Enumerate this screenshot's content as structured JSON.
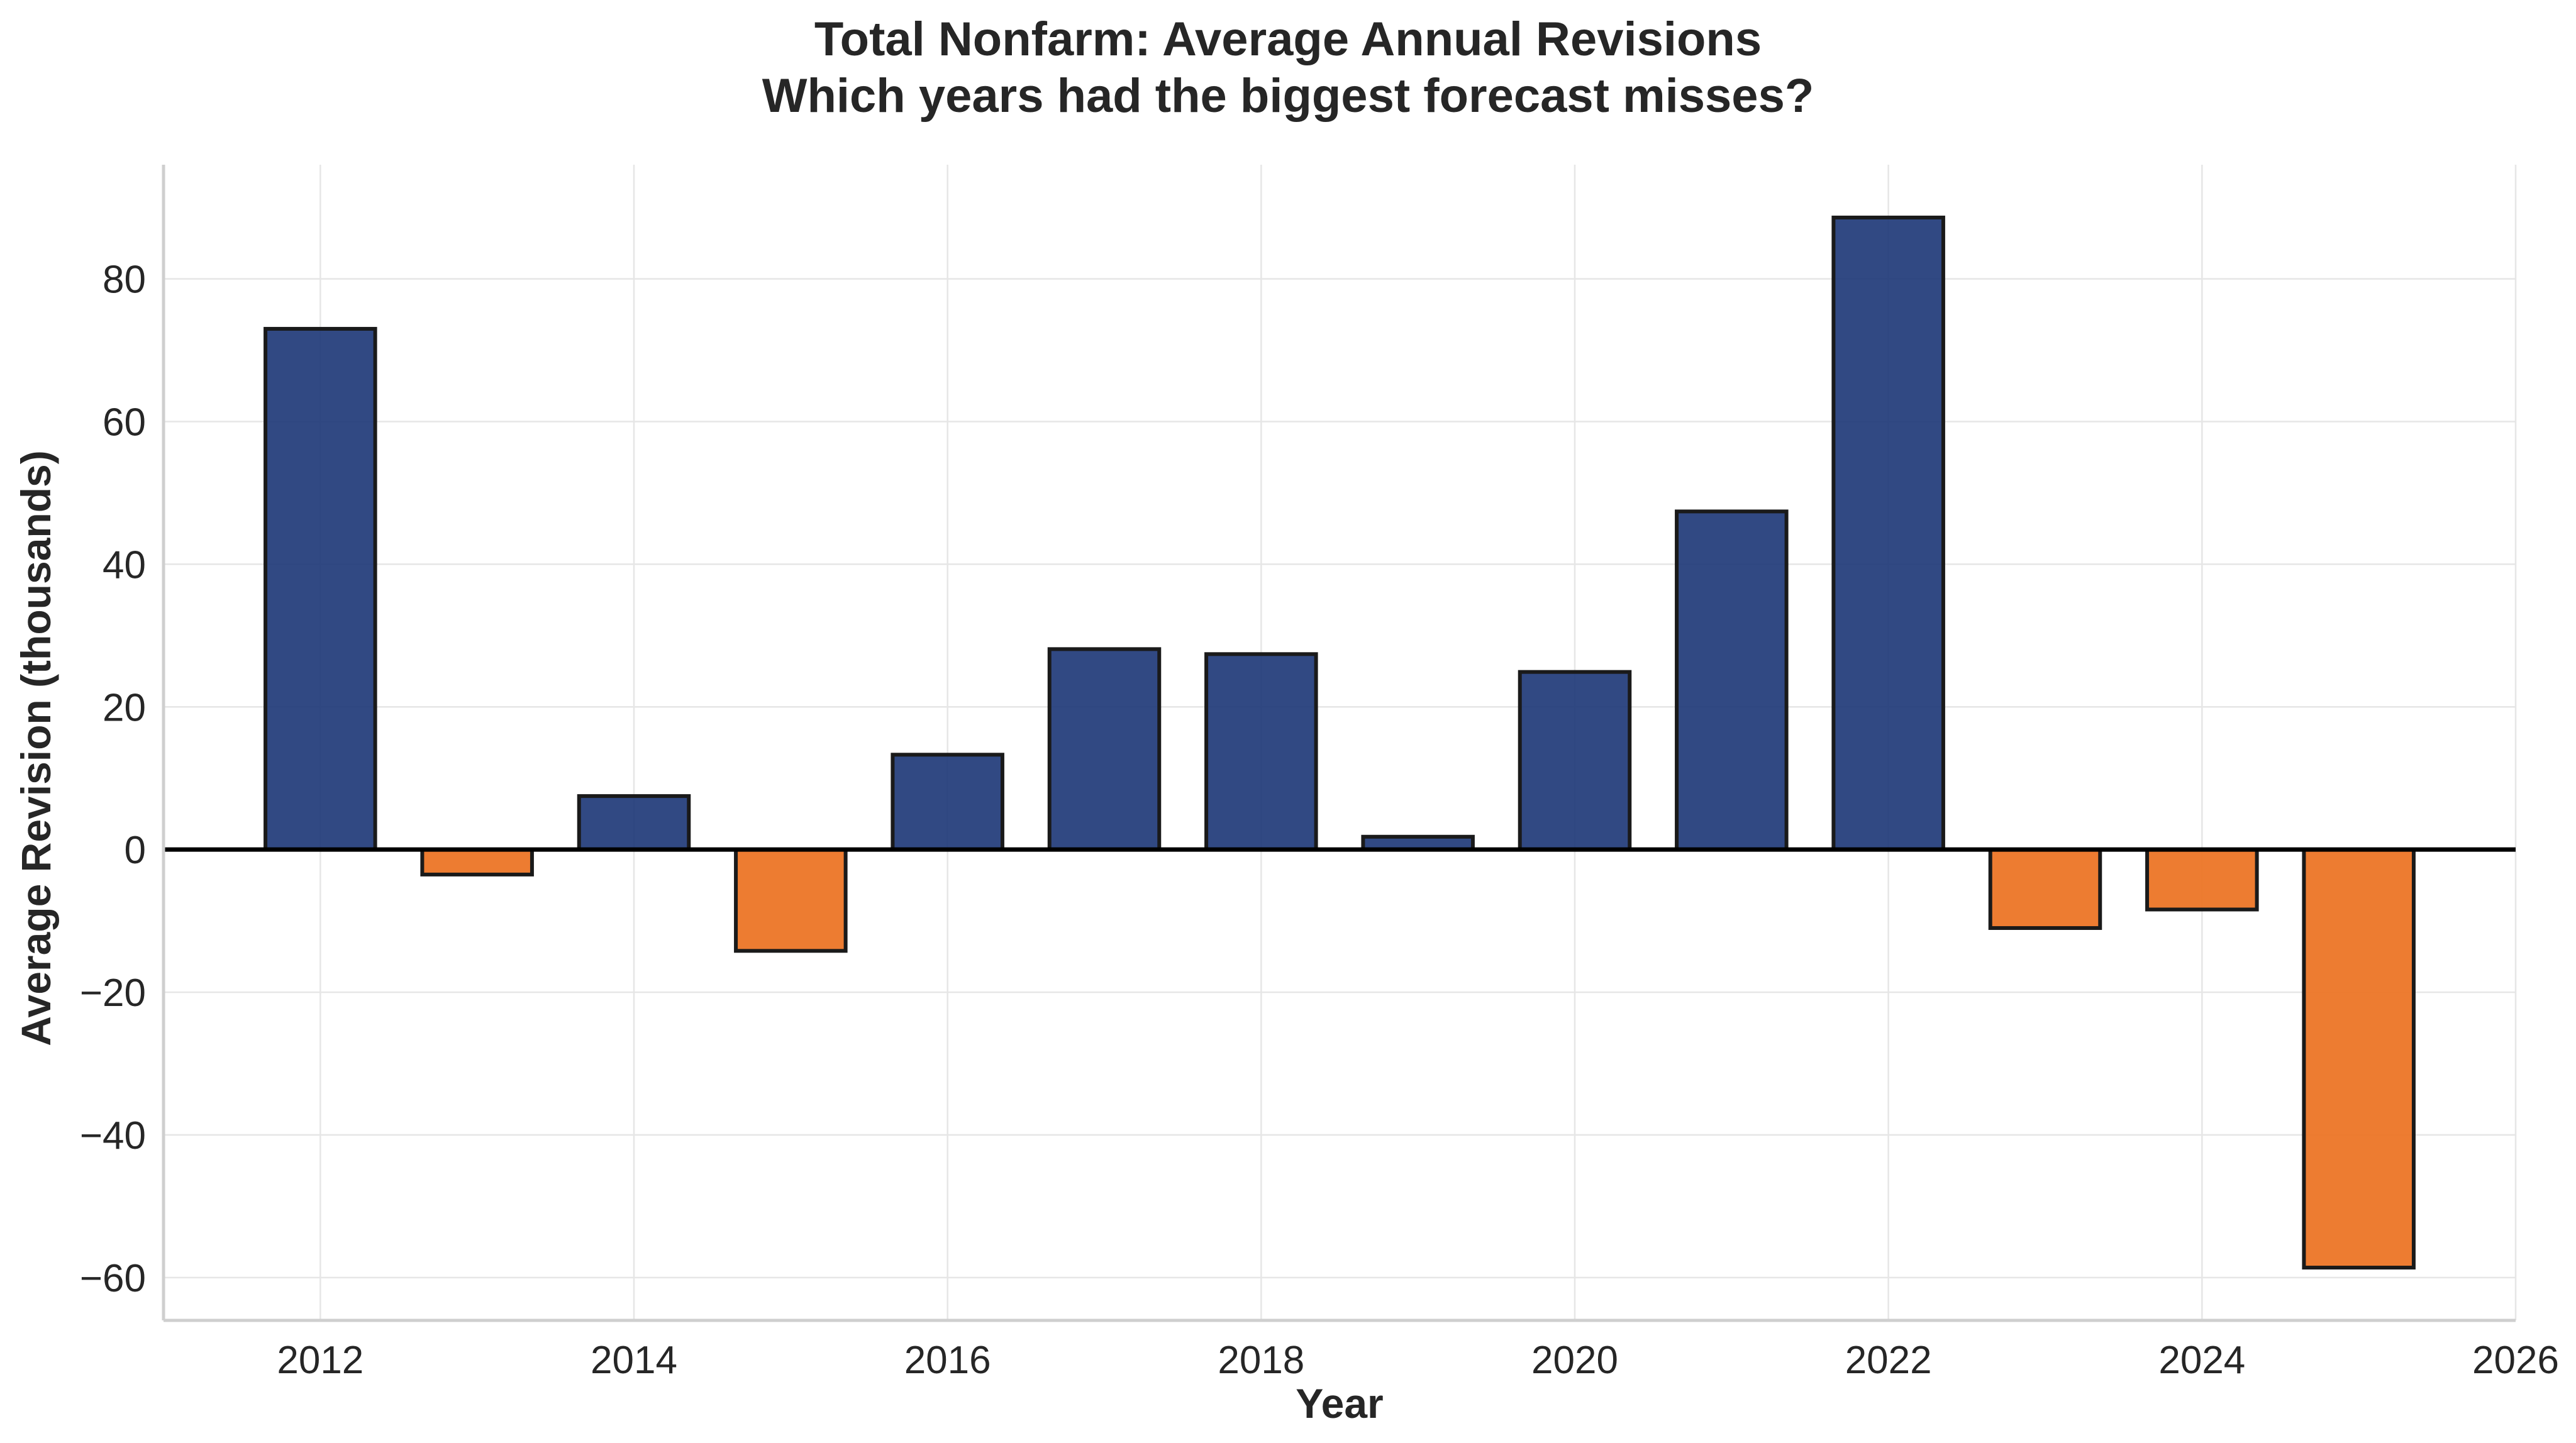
{
  "chart_data": {
    "type": "bar",
    "title": "Total Nonfarm: Average Annual Revisions",
    "subtitle": "Which years had the biggest forecast misses?",
    "xlabel": "Year",
    "ylabel": "Average Revision (thousands)",
    "x": [
      2012,
      2013,
      2014,
      2015,
      2016,
      2017,
      2018,
      2019,
      2020,
      2021,
      2022,
      2023,
      2024,
      2025
    ],
    "values": [
      73.0,
      -3.5,
      7.5,
      -14.2,
      13.3,
      28.1,
      27.4,
      1.8,
      24.9,
      47.4,
      88.6,
      -11.0,
      -8.4,
      -58.6
    ],
    "xlim": [
      2011,
      2026
    ],
    "ylim": [
      -66,
      96
    ],
    "xticks": [
      2012,
      2014,
      2016,
      2018,
      2020,
      2022,
      2024,
      2026
    ],
    "yticks": [
      -60,
      -40,
      -20,
      0,
      20,
      40,
      60,
      80
    ],
    "xtick_labels": [
      "2012",
      "2014",
      "2016",
      "2018",
      "2020",
      "2022",
      "2024",
      "2026"
    ],
    "ytick_labels": [
      "−60",
      "−40",
      "−20",
      "0",
      "20",
      "40",
      "60",
      "80"
    ],
    "grid": true,
    "colors": {
      "positive": "#1f3a78",
      "negative": "#ec7526"
    }
  }
}
